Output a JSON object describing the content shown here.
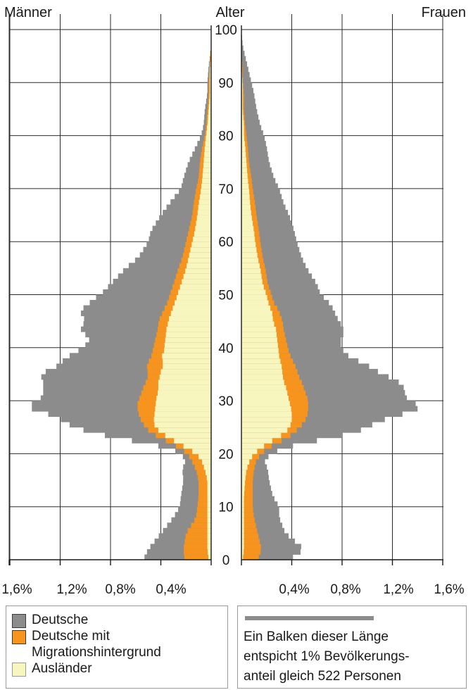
{
  "chart_data": {
    "type": "bar",
    "orientation": "horizontal",
    "subtype": "population-pyramid",
    "header": {
      "left": "Männer",
      "center": "Alter",
      "right": "Frauen"
    },
    "age_axis": {
      "min": 0,
      "max": 100,
      "ticks": [
        "0",
        "10",
        "20",
        "30",
        "40",
        "50",
        "60",
        "70",
        "80",
        "90",
        "100"
      ]
    },
    "x_axis": {
      "unit": "%",
      "max": 1.6,
      "tick_values": [
        0.4,
        0.8,
        1.2,
        1.6
      ],
      "tick_labels_left": [
        "1,6%",
        "1,2%",
        "0,8%",
        "0,4%"
      ],
      "tick_labels_right": [
        "0,4%",
        "0,8%",
        "1,2%",
        "1,6%"
      ]
    },
    "grid": true,
    "series_names": [
      "Deutsche",
      "Deutsche mit Migrationshintergrund",
      "Ausländer"
    ],
    "colors": {
      "deutsche": "#8c8c8c",
      "migration": "#f7941d",
      "auslaender": "#f7f6bf",
      "grid": "#2b2b2b"
    },
    "note": "values are cumulative outer edges (% of population) at age knots; bars drawn per single year by interpolation",
    "males": {
      "ages": [
        0,
        2,
        5,
        8,
        10,
        12,
        15,
        17,
        19,
        20,
        21,
        22,
        23,
        24,
        25,
        26,
        27,
        28,
        29,
        30,
        31,
        32,
        33,
        34,
        35,
        36,
        37,
        38,
        39,
        40,
        41,
        42,
        43,
        44,
        45,
        46,
        47,
        48,
        49,
        50,
        52,
        55,
        57,
        60,
        62,
        65,
        67,
        70,
        72,
        75,
        78,
        80,
        82,
        85,
        88,
        90,
        93,
        95,
        97,
        100
      ],
      "auslaender": [
        0.02,
        0.03,
        0.03,
        0.03,
        0.03,
        0.03,
        0.03,
        0.05,
        0.08,
        0.12,
        0.18,
        0.26,
        0.33,
        0.4,
        0.44,
        0.46,
        0.45,
        0.45,
        0.44,
        0.44,
        0.43,
        0.42,
        0.42,
        0.42,
        0.4,
        0.4,
        0.37,
        0.4,
        0.38,
        0.37,
        0.37,
        0.36,
        0.36,
        0.35,
        0.34,
        0.33,
        0.31,
        0.3,
        0.28,
        0.27,
        0.24,
        0.2,
        0.18,
        0.15,
        0.13,
        0.11,
        0.1,
        0.08,
        0.07,
        0.06,
        0.05,
        0.04,
        0.03,
        0.02,
        0.01,
        0.01,
        0.01,
        0.0,
        0.0,
        0.0
      ],
      "migration": [
        0.21,
        0.22,
        0.2,
        0.12,
        0.11,
        0.1,
        0.1,
        0.12,
        0.16,
        0.19,
        0.24,
        0.32,
        0.4,
        0.48,
        0.52,
        0.55,
        0.57,
        0.58,
        0.59,
        0.58,
        0.56,
        0.55,
        0.53,
        0.51,
        0.5,
        0.51,
        0.51,
        0.48,
        0.47,
        0.46,
        0.45,
        0.44,
        0.43,
        0.42,
        0.42,
        0.4,
        0.38,
        0.36,
        0.34,
        0.33,
        0.3,
        0.26,
        0.23,
        0.2,
        0.18,
        0.15,
        0.14,
        0.12,
        0.1,
        0.09,
        0.07,
        0.05,
        0.04,
        0.03,
        0.02,
        0.02,
        0.01,
        0.01,
        0.0,
        0.0
      ],
      "deutsche": [
        0.54,
        0.5,
        0.4,
        0.3,
        0.25,
        0.24,
        0.22,
        0.23,
        0.2,
        0.25,
        0.32,
        0.52,
        0.74,
        0.95,
        1.08,
        1.17,
        1.22,
        1.37,
        1.48,
        1.37,
        1.34,
        1.33,
        1.34,
        1.33,
        1.37,
        1.26,
        1.2,
        1.16,
        1.09,
        1.02,
        0.98,
        0.96,
        1.04,
        1.03,
        1.0,
        1.02,
        1.05,
        0.98,
        0.95,
        0.88,
        0.8,
        0.68,
        0.58,
        0.5,
        0.48,
        0.4,
        0.34,
        0.24,
        0.22,
        0.18,
        0.12,
        0.08,
        0.06,
        0.05,
        0.03,
        0.03,
        0.02,
        0.01,
        0.0,
        0.0
      ]
    },
    "females": {
      "ages": [
        0,
        2,
        5,
        8,
        10,
        12,
        15,
        17,
        19,
        20,
        21,
        22,
        23,
        24,
        25,
        26,
        27,
        28,
        29,
        30,
        31,
        32,
        33,
        34,
        35,
        36,
        37,
        38,
        39,
        40,
        41,
        42,
        43,
        44,
        45,
        46,
        47,
        48,
        49,
        50,
        52,
        55,
        57,
        60,
        62,
        65,
        67,
        70,
        72,
        75,
        78,
        80,
        82,
        85,
        88,
        90,
        93,
        95,
        97,
        100
      ],
      "auslaender": [
        0.01,
        0.02,
        0.02,
        0.02,
        0.02,
        0.02,
        0.03,
        0.04,
        0.07,
        0.1,
        0.15,
        0.21,
        0.28,
        0.35,
        0.38,
        0.4,
        0.4,
        0.4,
        0.39,
        0.38,
        0.37,
        0.36,
        0.35,
        0.33,
        0.33,
        0.32,
        0.32,
        0.3,
        0.3,
        0.29,
        0.29,
        0.28,
        0.28,
        0.27,
        0.25,
        0.25,
        0.24,
        0.22,
        0.21,
        0.2,
        0.17,
        0.15,
        0.13,
        0.11,
        0.1,
        0.08,
        0.07,
        0.06,
        0.05,
        0.04,
        0.03,
        0.02,
        0.02,
        0.01,
        0.01,
        0.01,
        0.0,
        0.0,
        0.0,
        0.0
      ],
      "migration": [
        0.13,
        0.16,
        0.13,
        0.1,
        0.09,
        0.09,
        0.09,
        0.1,
        0.12,
        0.16,
        0.2,
        0.28,
        0.36,
        0.42,
        0.46,
        0.5,
        0.52,
        0.53,
        0.53,
        0.53,
        0.52,
        0.5,
        0.49,
        0.47,
        0.45,
        0.44,
        0.42,
        0.4,
        0.38,
        0.37,
        0.36,
        0.35,
        0.34,
        0.33,
        0.33,
        0.31,
        0.3,
        0.27,
        0.25,
        0.24,
        0.21,
        0.19,
        0.17,
        0.15,
        0.14,
        0.12,
        0.11,
        0.09,
        0.08,
        0.06,
        0.05,
        0.04,
        0.03,
        0.02,
        0.02,
        0.01,
        0.01,
        0.0,
        0.0,
        0.0
      ],
      "deutsche": [
        0.38,
        0.5,
        0.35,
        0.3,
        0.3,
        0.25,
        0.22,
        0.21,
        0.18,
        0.25,
        0.32,
        0.5,
        0.7,
        0.9,
        1.0,
        1.08,
        1.2,
        1.36,
        1.44,
        1.33,
        1.3,
        1.3,
        1.28,
        1.22,
        1.12,
        1.05,
        0.98,
        0.88,
        0.82,
        0.8,
        0.78,
        0.8,
        0.82,
        0.8,
        0.78,
        0.75,
        0.74,
        0.71,
        0.68,
        0.63,
        0.6,
        0.52,
        0.48,
        0.44,
        0.42,
        0.38,
        0.34,
        0.3,
        0.26,
        0.22,
        0.2,
        0.18,
        0.15,
        0.12,
        0.1,
        0.08,
        0.05,
        0.03,
        0.01,
        0.0
      ]
    }
  },
  "legend": {
    "items": [
      {
        "label": "Deutsche",
        "color": "#8c8c8c"
      },
      {
        "label": "Deutsche mit",
        "label2": "Migrationshintergrund",
        "color": "#f7941d"
      },
      {
        "label": "Ausländer",
        "color": "#f7f6bf"
      }
    ]
  },
  "scale_note": {
    "line1": "Ein Balken dieser Länge",
    "line2": "entspicht 1% Bevölkerungs-",
    "line3": "anteil gleich 522 Personen",
    "bar_value": 1.0
  }
}
